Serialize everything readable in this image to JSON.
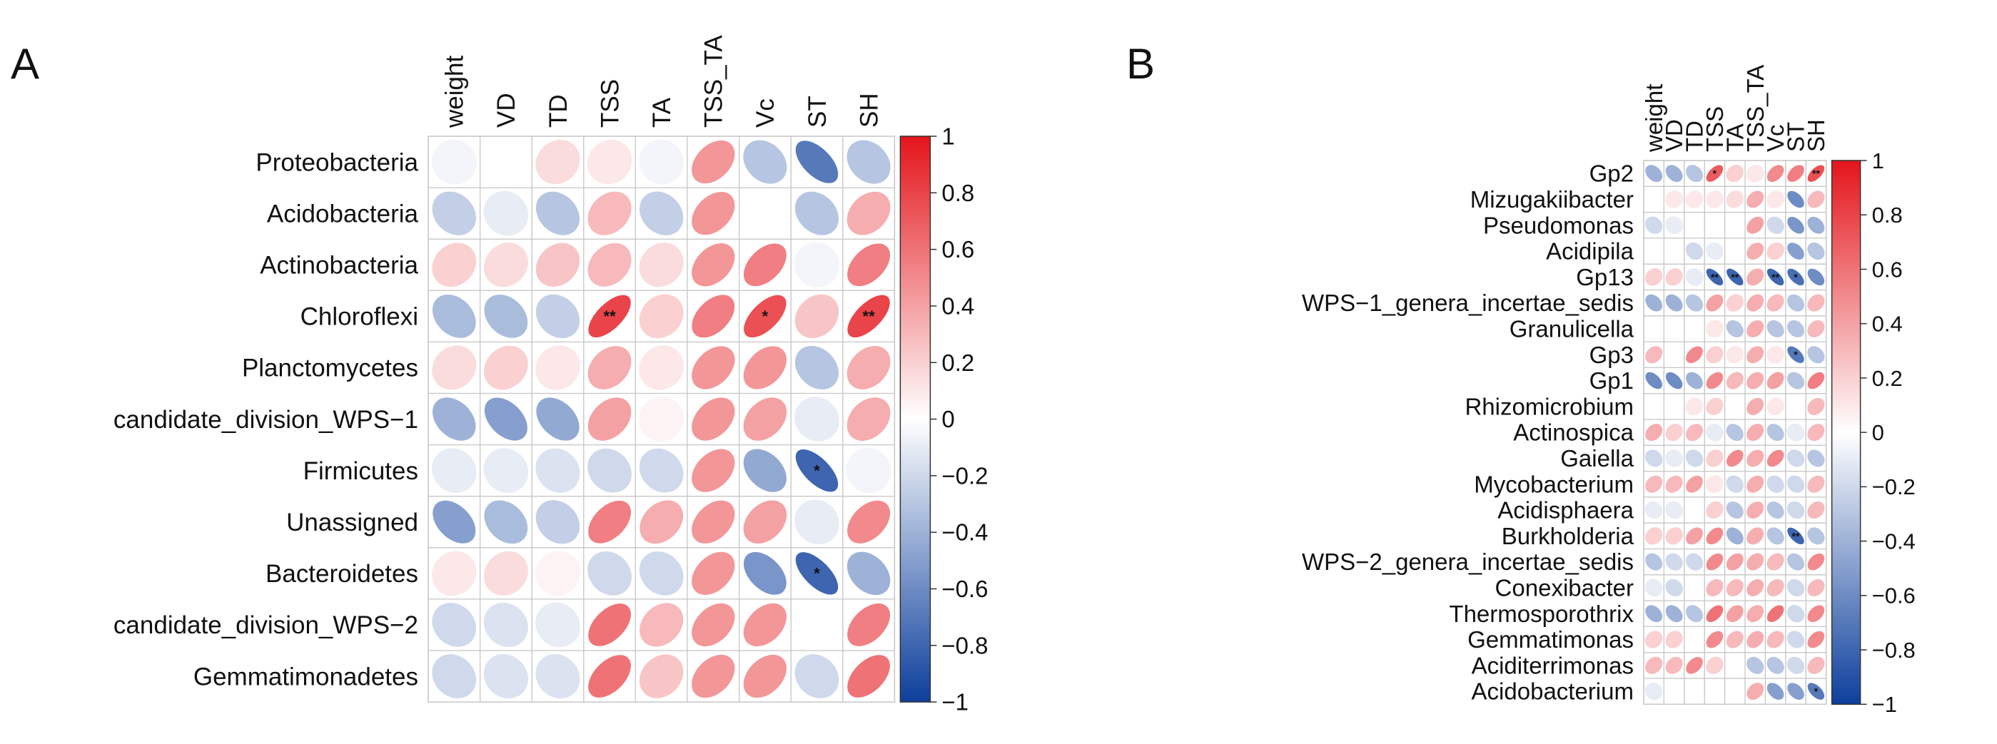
{
  "colors": {
    "neg": "#0d3f9c",
    "mid": "#ffffff",
    "pos": "#e4151b",
    "grid": "#c8c8c8"
  },
  "chart_data": [
    {
      "type": "heatmap",
      "label": "A",
      "title": "",
      "columns": [
        "weight",
        "VD",
        "TD",
        "TSS",
        "TA",
        "TSS_TA",
        "Vc",
        "ST",
        "SH"
      ],
      "rows": [
        "Proteobacteria",
        "Acidobacteria",
        "Actinobacteria",
        "Chloroflexi",
        "Planctomycetes",
        "candidate_division_WPS−1",
        "Firmicutes",
        "Unassigned",
        "Bacteroidetes",
        "candidate_division_WPS−2",
        "Gemmatimonadetes"
      ],
      "values": [
        [
          -0.05,
          0,
          0.15,
          0.1,
          -0.05,
          0.45,
          -0.3,
          -0.7,
          -0.3
        ],
        [
          -0.25,
          -0.1,
          -0.3,
          0.3,
          -0.25,
          0.45,
          0,
          -0.3,
          0.35
        ],
        [
          0.2,
          0.15,
          0.25,
          0.3,
          0.15,
          0.45,
          0.55,
          -0.05,
          0.55
        ],
        [
          -0.35,
          -0.35,
          -0.25,
          0.8,
          0.2,
          0.55,
          0.75,
          0.25,
          0.8
        ],
        [
          0.15,
          0.2,
          0.1,
          0.35,
          0.1,
          0.45,
          0.45,
          -0.3,
          0.35
        ],
        [
          -0.4,
          -0.5,
          -0.45,
          0.4,
          0.05,
          0.45,
          0.4,
          -0.1,
          0.35
        ],
        [
          -0.1,
          -0.1,
          -0.15,
          -0.2,
          -0.2,
          0.45,
          -0.45,
          -0.8,
          -0.05
        ],
        [
          -0.5,
          -0.35,
          -0.25,
          0.55,
          0.35,
          0.45,
          0.4,
          -0.1,
          0.5
        ],
        [
          0.1,
          0.15,
          0.05,
          -0.2,
          -0.2,
          0.45,
          -0.55,
          -0.8,
          -0.4
        ],
        [
          -0.2,
          -0.15,
          -0.1,
          0.6,
          0.3,
          0.45,
          0.45,
          0,
          0.55
        ],
        [
          -0.2,
          -0.15,
          -0.15,
          0.6,
          0.25,
          0.45,
          0.45,
          -0.2,
          0.6
        ]
      ],
      "significance": [
        [
          "",
          "",
          "",
          "",
          "",
          "",
          "",
          "",
          ""
        ],
        [
          "",
          "",
          "",
          "",
          "",
          "",
          "",
          "",
          ""
        ],
        [
          "",
          "",
          "",
          "",
          "",
          "",
          "",
          "",
          ""
        ],
        [
          "",
          "",
          "",
          "**",
          "",
          "",
          "*",
          "",
          "**"
        ],
        [
          "",
          "",
          "",
          "",
          "",
          "",
          "",
          "",
          ""
        ],
        [
          "",
          "",
          "",
          "",
          "",
          "",
          "",
          "",
          ""
        ],
        [
          "",
          "",
          "",
          "",
          "",
          "",
          "",
          "*",
          ""
        ],
        [
          "",
          "",
          "",
          "",
          "",
          "",
          "",
          "",
          ""
        ],
        [
          "",
          "",
          "",
          "",
          "",
          "",
          "",
          "*",
          ""
        ],
        [
          "",
          "",
          "",
          "",
          "",
          "",
          "",
          "",
          ""
        ],
        [
          "",
          "",
          "",
          "",
          "",
          "",
          "",
          "",
          ""
        ]
      ],
      "colorbar": {
        "ticks": [
          "1",
          "0.8",
          "0.6",
          "0.4",
          "0.2",
          "0",
          "−0.2",
          "−0.4",
          "−0.6",
          "−0.8",
          "−1"
        ],
        "range": [
          -1,
          1
        ]
      }
    },
    {
      "type": "heatmap",
      "label": "B",
      "title": "",
      "columns": [
        "weight",
        "VD",
        "TD",
        "TSS",
        "TA",
        "TSS_TA",
        "Vc",
        "ST",
        "SH"
      ],
      "rows": [
        "Gp2",
        "Mizugakiibacter",
        "Pseudomonas",
        "Acidipila",
        "Gp13",
        "WPS−1_genera_incertae_sedis",
        "Granulicella",
        "Gp3",
        "Gp1",
        "Rhizomicrobium",
        "Actinospica",
        "Gaiella",
        "Mycobacterium",
        "Acidisphaera",
        "Burkholderia",
        "WPS−2_genera_incertae_sedis",
        "Conexibacter",
        "Thermosporothrix",
        "Gemmatimonas",
        "Aciditerrimonas",
        "Acidobacterium"
      ],
      "values": [
        [
          -0.4,
          -0.4,
          -0.3,
          0.7,
          0.2,
          0.1,
          0.5,
          0.55,
          0.75
        ],
        [
          0,
          0.1,
          0.1,
          0.1,
          0.15,
          0.35,
          0.1,
          -0.6,
          0.3
        ],
        [
          -0.2,
          -0.1,
          0,
          0,
          0,
          0.4,
          -0.2,
          -0.55,
          -0.4
        ],
        [
          0,
          0,
          -0.2,
          -0.1,
          0,
          0.35,
          0.2,
          -0.5,
          -0.3
        ],
        [
          0.2,
          0.2,
          -0.1,
          -0.8,
          -0.8,
          0.35,
          -0.8,
          -0.75,
          -0.6
        ],
        [
          -0.4,
          -0.4,
          -0.3,
          0.4,
          0.2,
          0.35,
          0.3,
          -0.3,
          0.3
        ],
        [
          0,
          0,
          0,
          0.1,
          -0.3,
          0.35,
          -0.3,
          -0.3,
          0.3
        ],
        [
          0.3,
          0,
          0.5,
          0.2,
          0.1,
          0.35,
          0.1,
          -0.7,
          -0.3
        ],
        [
          -0.6,
          -0.6,
          -0.4,
          0.5,
          0.3,
          0.35,
          0.4,
          -0.3,
          0.55
        ],
        [
          0,
          0,
          0.1,
          0.2,
          0,
          0.35,
          0.1,
          0,
          0.3
        ],
        [
          0.35,
          0.2,
          0.3,
          -0.1,
          -0.3,
          0.35,
          -0.3,
          -0.1,
          0.3
        ],
        [
          -0.2,
          -0.1,
          -0.2,
          0.2,
          0.5,
          0.35,
          0.5,
          -0.2,
          -0.3
        ],
        [
          0.3,
          0.3,
          0.4,
          0.1,
          -0.2,
          0.35,
          -0.2,
          -0.2,
          0.3
        ],
        [
          -0.1,
          -0.1,
          0,
          0.2,
          -0.3,
          0.35,
          -0.3,
          -0.2,
          0.3
        ],
        [
          0.2,
          0.2,
          0.4,
          0.5,
          -0.4,
          0.35,
          -0.3,
          -0.8,
          -0.3
        ],
        [
          -0.3,
          -0.2,
          -0.2,
          0.5,
          0.4,
          0.35,
          0.3,
          -0.3,
          0.5
        ],
        [
          -0.1,
          -0.2,
          0,
          0.3,
          0.3,
          0.35,
          0.3,
          -0.2,
          0.3
        ],
        [
          -0.4,
          -0.4,
          -0.3,
          0.6,
          0.4,
          0.35,
          0.6,
          -0.2,
          0.5
        ],
        [
          0.2,
          0.2,
          0,
          0.5,
          0.3,
          0.35,
          0.3,
          -0.2,
          0.5
        ],
        [
          0.3,
          0.3,
          0.5,
          0.2,
          0,
          -0.3,
          -0.3,
          -0.2,
          0.3
        ],
        [
          -0.1,
          0,
          0,
          0,
          0,
          0.35,
          -0.5,
          -0.5,
          -0.7
        ]
      ],
      "significance": [
        [
          "",
          "",
          "",
          "*",
          "",
          "",
          "",
          "",
          "**"
        ],
        [
          "",
          "",
          "",
          "",
          "",
          "",
          "",
          "",
          ""
        ],
        [
          "",
          "",
          "",
          "",
          "",
          "",
          "",
          "",
          ""
        ],
        [
          "",
          "",
          "",
          "",
          "",
          "",
          "",
          "",
          ""
        ],
        [
          "",
          "",
          "",
          "**",
          "**",
          "",
          "**",
          "*",
          ""
        ],
        [
          "",
          "",
          "",
          "",
          "",
          "",
          "",
          "",
          ""
        ],
        [
          "",
          "",
          "",
          "",
          "",
          "",
          "",
          "",
          ""
        ],
        [
          "",
          "",
          "",
          "",
          "",
          "",
          "",
          "*",
          ""
        ],
        [
          "",
          "",
          "",
          "",
          "",
          "",
          "",
          "",
          ""
        ],
        [
          "",
          "",
          "",
          "",
          "",
          "",
          "",
          "",
          ""
        ],
        [
          "",
          "",
          "",
          "",
          "",
          "",
          "",
          "",
          ""
        ],
        [
          "",
          "",
          "",
          "",
          "",
          "",
          "",
          "",
          ""
        ],
        [
          "",
          "",
          "",
          "",
          "",
          "",
          "",
          "",
          ""
        ],
        [
          "",
          "",
          "",
          "",
          "",
          "",
          "",
          "",
          ""
        ],
        [
          "",
          "",
          "",
          "",
          "",
          "",
          "",
          "**",
          ""
        ],
        [
          "",
          "",
          "",
          "",
          "",
          "",
          "",
          "",
          ""
        ],
        [
          "",
          "",
          "",
          "",
          "",
          "",
          "",
          "",
          ""
        ],
        [
          "",
          "",
          "",
          "",
          "",
          "",
          "",
          "",
          ""
        ],
        [
          "",
          "",
          "",
          "",
          "",
          "",
          "",
          "",
          ""
        ],
        [
          "",
          "",
          "",
          "",
          "",
          "",
          "",
          "",
          ""
        ],
        [
          "",
          "",
          "",
          "",
          "",
          "",
          "",
          "",
          "*"
        ]
      ],
      "colorbar": {
        "ticks": [
          "1",
          "0.8",
          "0.6",
          "0.4",
          "0.2",
          "0",
          "−0.2",
          "−0.4",
          "−0.6",
          "−0.8",
          "−1"
        ],
        "range": [
          -1,
          1
        ]
      }
    }
  ]
}
